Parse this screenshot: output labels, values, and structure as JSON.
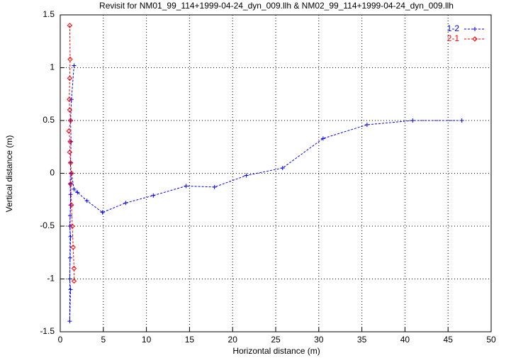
{
  "chart_data": {
    "type": "line",
    "title": "Revisit for NM01_99_114+1999-04-24_dyn_009.llh & NM02_99_114+1999-04-24_dyn_009.llh",
    "x_label": "Horizontal distance (m)",
    "y_label": "Vertical distance (m)",
    "xlim": [
      0,
      50
    ],
    "ylim": [
      -1.5,
      1.5
    ],
    "xticks": [
      0,
      5,
      10,
      15,
      20,
      25,
      30,
      35,
      40,
      45,
      50
    ],
    "yticks": [
      -1.5,
      -1,
      -0.5,
      0,
      0.5,
      1,
      1.5
    ],
    "grid": true,
    "legend": "top-right",
    "series": [
      {
        "name": "1-2",
        "color": "#0000ff",
        "marker": "plus",
        "x": [
          1.6,
          1.3,
          1.2,
          1.25,
          1.2,
          1.15,
          1.2,
          1.1,
          1.2,
          1.15,
          1.1,
          1.2,
          1.1,
          1.15,
          1.2,
          1.3,
          1.6,
          2.0,
          3.1,
          4.9,
          7.6,
          10.8,
          14.6,
          17.9,
          21.6,
          25.8,
          30.5,
          35.6,
          40.9,
          46.6
        ],
        "values": [
          1.02,
          0.7,
          0.5,
          0.3,
          0.1,
          -0.1,
          -0.3,
          -0.5,
          -0.6,
          -0.8,
          -1.0,
          -1.1,
          -1.4,
          -0.4,
          -0.2,
          0.0,
          -0.15,
          -0.18,
          -0.26,
          -0.37,
          -0.28,
          -0.21,
          -0.12,
          -0.13,
          -0.02,
          0.05,
          0.33,
          0.46,
          0.5,
          0.5
        ]
      },
      {
        "name": "2-1",
        "color": "#ff0000",
        "marker": "diamond",
        "x": [
          1.1,
          1.15,
          1.1,
          1.05,
          1.1,
          1.2,
          1.0,
          1.15,
          1.1,
          1.2,
          1.3,
          1.2,
          1.3,
          1.4,
          1.5,
          1.6,
          1.6
        ],
        "values": [
          1.4,
          1.08,
          0.9,
          0.7,
          0.6,
          0.5,
          0.4,
          0.3,
          0.2,
          0.1,
          0.0,
          -0.1,
          -0.3,
          -0.5,
          -0.7,
          -0.9,
          -1.02
        ]
      }
    ]
  }
}
